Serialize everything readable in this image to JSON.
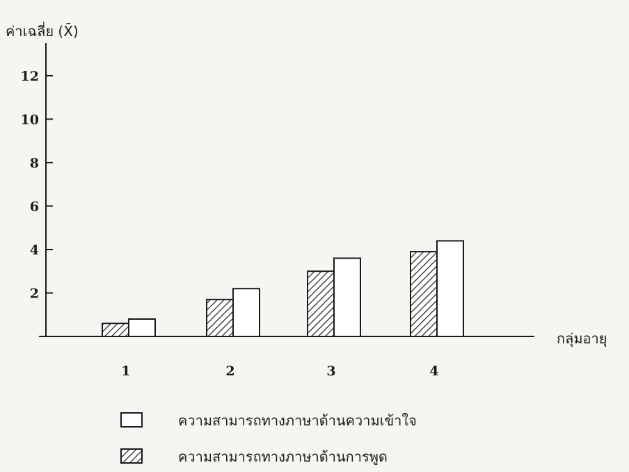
{
  "chart_data": {
    "type": "bar",
    "ylabel": "ค่าเฉลี่ย (X̄)",
    "xlabel": "กลุ่มอายุ",
    "categories": [
      "1",
      "2",
      "3",
      "4"
    ],
    "yticks": [
      2,
      4,
      6,
      8,
      10,
      12
    ],
    "ylim": [
      0,
      13.5
    ],
    "grid": false,
    "legend_position": "bottom",
    "series": [
      {
        "name": "ความสามารถทางภาษาด้านการพูด",
        "pattern": "hatched",
        "values": [
          0.6,
          1.7,
          3.0,
          3.9
        ]
      },
      {
        "name": "ความสามารถทางภาษาด้านความเข้าใจ",
        "pattern": "solid-white",
        "values": [
          0.8,
          2.2,
          3.6,
          4.4
        ]
      }
    ],
    "legend_order": [
      1,
      0
    ]
  }
}
